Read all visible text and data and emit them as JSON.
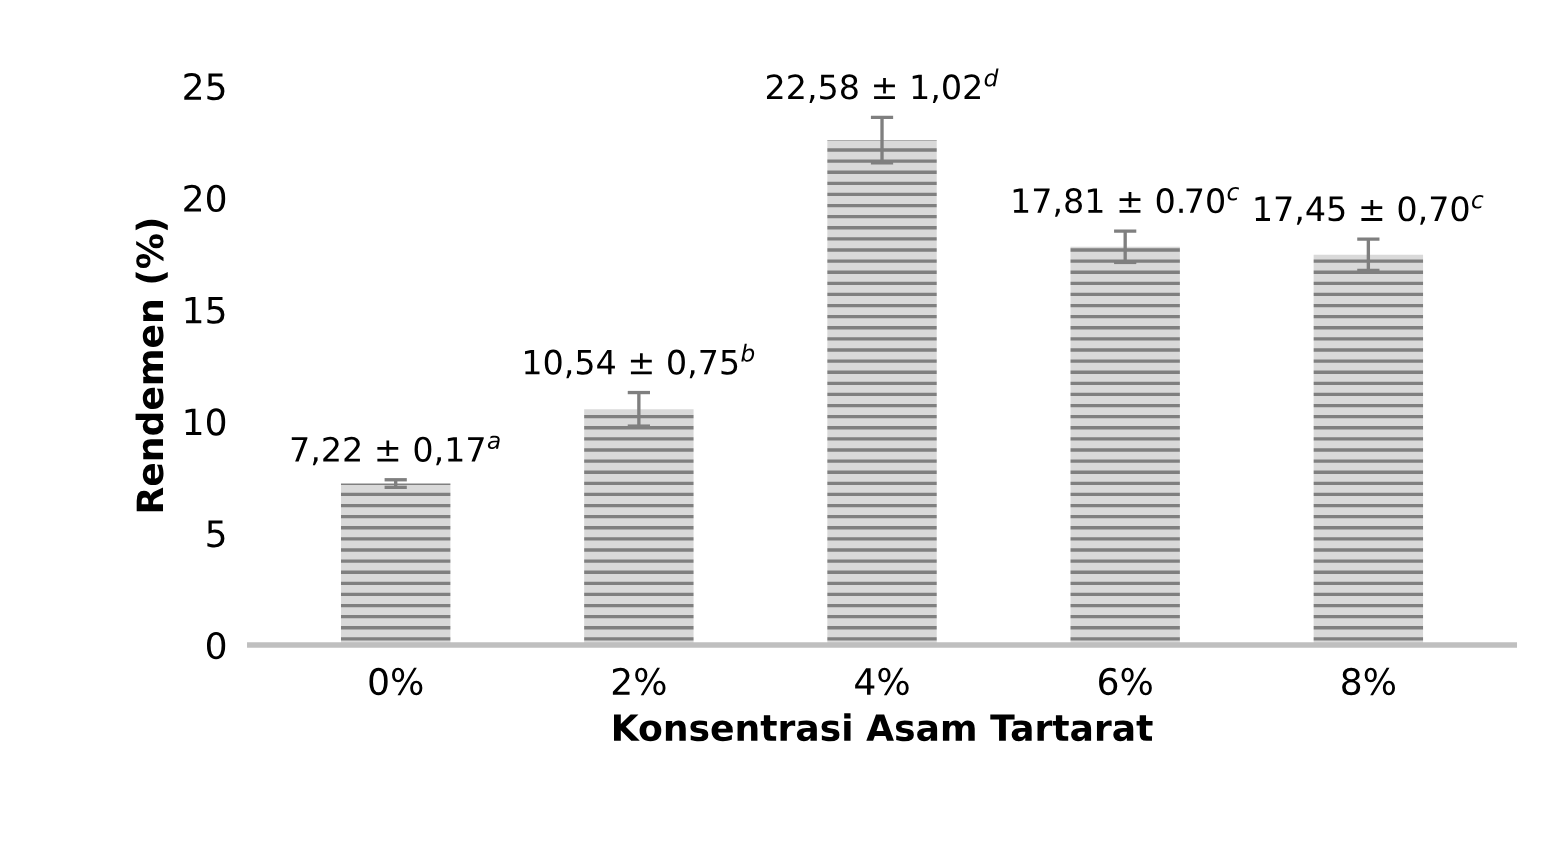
{
  "chart_data": {
    "type": "bar",
    "xlabel": "Konsentrasi Asam Tartarat",
    "ylabel": "Rendemen (%)",
    "categories": [
      "0%",
      "2%",
      "4%",
      "6%",
      "8%"
    ],
    "values": [
      7.22,
      10.54,
      22.58,
      17.81,
      17.45
    ],
    "errors": [
      0.17,
      0.75,
      1.02,
      0.7,
      0.7
    ],
    "value_labels": [
      "7,22 ± 0,17$^{a}$",
      "10,54 ± 0,75$^{b}$",
      "22,58 ± 1,02$^{d}$",
      "17,81 ± 0.70$^{c}$",
      "17,45 ± 0,70$^{c}$"
    ],
    "color": "#7f7f7f",
    "ylim": [
      0,
      25
    ],
    "yticks": [
      0,
      5,
      10,
      15,
      20,
      25
    ],
    "grid": false,
    "legend": false
  }
}
